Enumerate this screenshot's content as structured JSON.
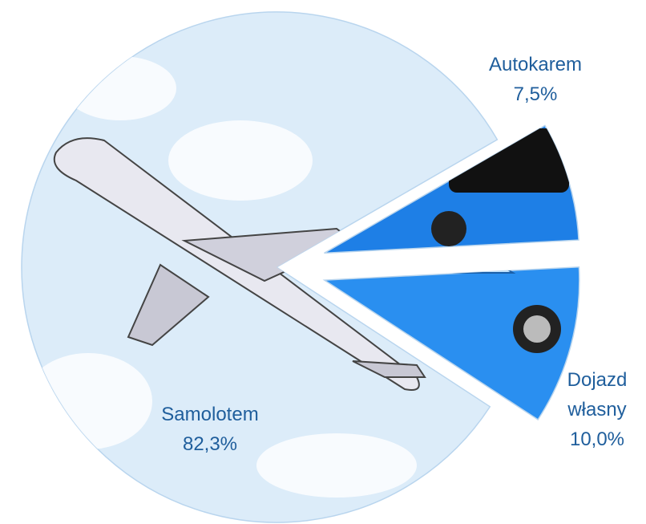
{
  "chart_data": {
    "type": "pie",
    "categories": [
      "Autokarem",
      "Dojazd własny",
      "Samolotem"
    ],
    "values": [
      7.5,
      10.0,
      82.3
    ],
    "value_labels": [
      "7,5%",
      "10,0%",
      "82,3%"
    ],
    "colors": [
      "#1e7fe6",
      "#2a8ff0",
      "#dcecf9"
    ]
  }
}
